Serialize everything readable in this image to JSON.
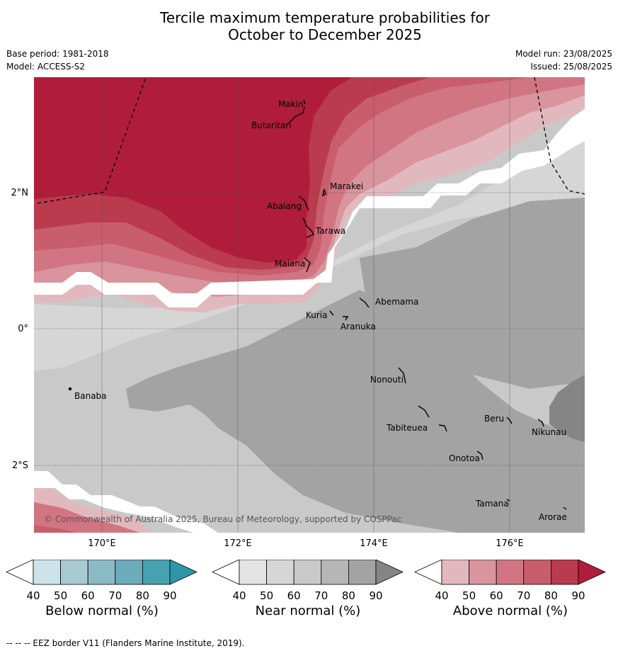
{
  "title": {
    "line1": "Tercile maximum temperature probabilities for",
    "line2": "October to December 2025"
  },
  "meta": {
    "base_period": "Base period: 1981-2018",
    "model": "Model: ACCESS-S2",
    "model_run": "Model run: 23/08/2025",
    "issued": "Issued: 25/08/2025"
  },
  "axes": {
    "lat_labels": [
      "2°N",
      "0°",
      "2°S"
    ],
    "lon_labels": [
      "170°E",
      "172°E",
      "174°E",
      "176°E"
    ]
  },
  "places": [
    {
      "name": "Makin"
    },
    {
      "name": "Butaritari"
    },
    {
      "name": "Marakei"
    },
    {
      "name": "Abaiang"
    },
    {
      "name": "Tarawa"
    },
    {
      "name": "Maiana"
    },
    {
      "name": "Abemama"
    },
    {
      "name": "Kuria"
    },
    {
      "name": "Aranuka"
    },
    {
      "name": "Nonouti"
    },
    {
      "name": "Banaba"
    },
    {
      "name": "Beru"
    },
    {
      "name": "Nikunau"
    },
    {
      "name": "Tabiteuea"
    },
    {
      "name": "Onotoa"
    },
    {
      "name": "Tamana"
    },
    {
      "name": "Arorae"
    }
  ],
  "credit": "© Commonwealth of Australia 2025, Bureau of Meteorology, supported by COSPPac",
  "colorbars": [
    {
      "title": "Below normal (%)",
      "ticks": [
        "40",
        "50",
        "60",
        "70",
        "80",
        "90"
      ],
      "colors": [
        "#cce3ea",
        "#a8cbd3",
        "#8bbac6",
        "#6cabb9",
        "#47a1b0",
        "#2d96a8"
      ]
    },
    {
      "title": "Near normal (%)",
      "ticks": [
        "40",
        "50",
        "60",
        "70",
        "80",
        "90"
      ],
      "colors": [
        "#e4e4e4",
        "#d6d6d6",
        "#c9c9c9",
        "#b6b6b6",
        "#a3a3a3",
        "#858585"
      ]
    },
    {
      "title": "Above normal (%)",
      "ticks": [
        "40",
        "50",
        "60",
        "70",
        "80",
        "90"
      ],
      "colors": [
        "#e2b8bf",
        "#d9949d",
        "#d17582",
        "#c85d6b",
        "#ba3a4e",
        "#b01d3a"
      ]
    }
  ],
  "footer": "--  --  -- EEZ border V11 (Flanders Marine Institute, 2019)."
}
